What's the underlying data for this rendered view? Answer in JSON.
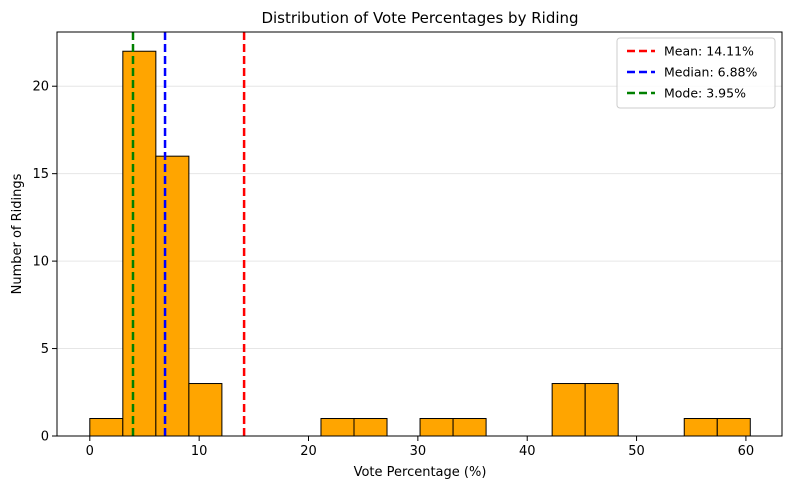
{
  "chart_data": {
    "type": "bar",
    "title": "Distribution of Vote Percentages by Riding",
    "xlabel": "Vote Percentage (%)",
    "ylabel": "Number of Ridings",
    "xlim": [
      -3.0,
      63.3
    ],
    "ylim": [
      0,
      23.1
    ],
    "xticks": [
      0,
      10,
      20,
      30,
      40,
      50,
      60
    ],
    "yticks": [
      0,
      5,
      10,
      15,
      20
    ],
    "grid": "horizontal",
    "bar_color": "#FFA500",
    "bin_edges": [
      0.0,
      3.02,
      6.04,
      9.06,
      12.08,
      15.1,
      18.12,
      21.14,
      24.16,
      27.18,
      30.2,
      33.22,
      36.24,
      39.26,
      42.28,
      45.3,
      48.32,
      51.34,
      54.36,
      57.38,
      60.4
    ],
    "counts": [
      1,
      22,
      16,
      3,
      0,
      0,
      0,
      1,
      1,
      0,
      1,
      1,
      0,
      0,
      3,
      3,
      0,
      0,
      1,
      1
    ],
    "reference_lines": [
      {
        "name": "Mean: 14.11%",
        "value": 14.11,
        "color": "#FF0000"
      },
      {
        "name": "Median: 6.88%",
        "value": 6.88,
        "color": "#0000FF"
      },
      {
        "name": "Mode: 3.95%",
        "value": 3.95,
        "color": "#008000"
      }
    ],
    "legend_position": "top-right"
  }
}
